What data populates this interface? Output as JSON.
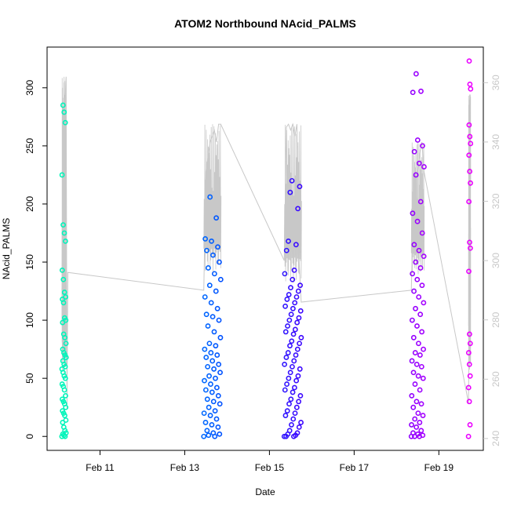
{
  "chart_data": {
    "type": "scatter",
    "title": "ATOM2 Northbound NAcid_PALMS",
    "xlabel": "Date",
    "ylabel": "NAcid_PALMS",
    "x_ticks": [
      "Feb 11",
      "Feb 13",
      "Feb 15",
      "Feb 17",
      "Feb 19"
    ],
    "x_tick_days": [
      11,
      13,
      15,
      17,
      19
    ],
    "xlim": [
      9.75,
      20.05
    ],
    "ylim": [
      -12,
      335
    ],
    "y_ticks": [
      0,
      50,
      100,
      150,
      200,
      250,
      300
    ],
    "y2lim": [
      236,
      372
    ],
    "y2_ticks": [
      240,
      260,
      280,
      300,
      320,
      340,
      360
    ],
    "y2_color": "#c8c8c8",
    "altitude_line_color": "#c8c8c8",
    "point_color_scale": [
      "#00ffaa",
      "#00c8ff",
      "#0050ff",
      "#4400ff",
      "#7a00ff",
      "#ff00ff"
    ],
    "note": "",
    "segments": [
      {
        "x_start": 10.1,
        "x_end": 10.2,
        "points": [
          0,
          0,
          1,
          2,
          3,
          5,
          8,
          12,
          14,
          18,
          20,
          22,
          25,
          28,
          30,
          32,
          35,
          40,
          43,
          45,
          50,
          52,
          55,
          58,
          60,
          62,
          65,
          68,
          70,
          72,
          75,
          80,
          85,
          88,
          98,
          100,
          102,
          115,
          118,
          120,
          124,
          135,
          143,
          168,
          175,
          182,
          225,
          270,
          279,
          285
        ],
        "line": [
          [
            10.1,
            290
          ],
          [
            10.12,
            300
          ],
          [
            10.14,
            320
          ],
          [
            10.16,
            345
          ],
          [
            10.18,
            355
          ],
          [
            10.19,
            360
          ],
          [
            10.2,
            362
          ],
          [
            10.22,
            250
          ],
          [
            10.24,
            296
          ]
        ]
      },
      {
        "x_start": 13.45,
        "x_end": 13.85,
        "points": [
          0,
          0,
          1,
          2,
          3,
          5,
          8,
          10,
          12,
          15,
          18,
          20,
          22,
          25,
          28,
          30,
          32,
          35,
          38,
          40,
          42,
          45,
          48,
          50,
          52,
          55,
          58,
          60,
          62,
          65,
          68,
          70,
          72,
          75,
          78,
          80,
          85,
          90,
          95,
          100,
          103,
          105,
          110,
          115,
          120,
          125,
          130,
          135,
          140,
          145,
          150,
          156,
          160,
          163,
          168,
          170,
          188,
          206
        ],
        "line": [
          [
            13.45,
            290
          ],
          [
            13.5,
            330
          ],
          [
            13.55,
            335
          ],
          [
            13.6,
            340
          ],
          [
            13.65,
            342
          ],
          [
            13.7,
            344
          ],
          [
            13.75,
            340
          ],
          [
            13.8,
            346
          ],
          [
            13.85,
            346
          ]
        ]
      },
      {
        "x_start": 15.35,
        "x_end": 15.75,
        "points": [
          0,
          0,
          0,
          1,
          2,
          3,
          5,
          8,
          10,
          12,
          15,
          18,
          20,
          22,
          25,
          28,
          30,
          32,
          35,
          38,
          40,
          42,
          45,
          48,
          50,
          52,
          55,
          58,
          60,
          62,
          65,
          68,
          70,
          72,
          75,
          78,
          80,
          82,
          85,
          88,
          90,
          92,
          95,
          98,
          100,
          102,
          105,
          108,
          110,
          112,
          115,
          118,
          120,
          122,
          125,
          128,
          130,
          135,
          140,
          143,
          160,
          165,
          168,
          196,
          210,
          215,
          220
        ],
        "line": [
          [
            15.35,
            300
          ],
          [
            15.4,
            345
          ],
          [
            15.45,
            346
          ],
          [
            15.5,
            344
          ],
          [
            15.55,
            346
          ],
          [
            15.6,
            342
          ],
          [
            15.65,
            346
          ],
          [
            15.7,
            300
          ],
          [
            15.75,
            286
          ]
        ]
      },
      {
        "x_start": 18.35,
        "x_end": 18.65,
        "points": [
          0,
          0,
          0,
          1,
          2,
          3,
          5,
          8,
          10,
          12,
          15,
          18,
          20,
          25,
          28,
          30,
          35,
          40,
          45,
          50,
          52,
          55,
          60,
          62,
          65,
          70,
          72,
          75,
          80,
          85,
          90,
          95,
          100,
          105,
          110,
          115,
          120,
          125,
          130,
          135,
          140,
          145,
          150,
          155,
          160,
          165,
          175,
          185,
          192,
          202,
          225,
          232,
          235,
          245,
          250,
          255,
          296,
          297,
          312
        ],
        "line": [
          [
            18.35,
            290
          ],
          [
            18.4,
            320
          ],
          [
            18.45,
            325
          ],
          [
            18.5,
            330
          ],
          [
            18.55,
            336
          ],
          [
            18.6,
            340
          ],
          [
            18.65,
            330
          ]
        ]
      },
      {
        "x_start": 19.7,
        "x_end": 19.75,
        "points": [
          0,
          10,
          30,
          42,
          52,
          62,
          72,
          80,
          88,
          142,
          162,
          167,
          202,
          218,
          228,
          242,
          252,
          258,
          268,
          299,
          303,
          323
        ],
        "line": [
          [
            19.7,
            252
          ],
          [
            19.72,
            290
          ],
          [
            19.73,
            350
          ],
          [
            19.74,
            356
          ],
          [
            19.75,
            326
          ]
        ]
      }
    ]
  }
}
